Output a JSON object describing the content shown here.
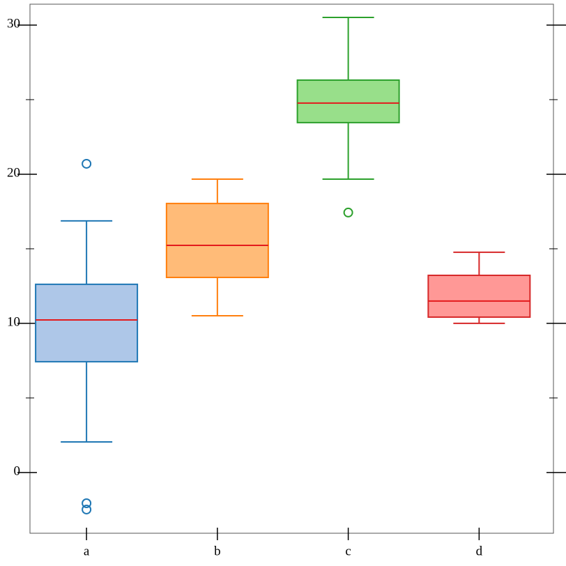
{
  "chart_data": {
    "type": "box",
    "categories": [
      "a",
      "b",
      "c",
      "d"
    ],
    "colors": [
      "#1f77b4",
      "#ff7f0e",
      "#2ca02c",
      "#d62728"
    ],
    "fills": [
      "#aec7e8",
      "#ffbb78",
      "#98df8a",
      "#ff9896"
    ],
    "median_color": "#e31a1c",
    "boxes": [
      {
        "whislo": 2.05,
        "q1": 7.43,
        "med": 10.23,
        "q3": 12.62,
        "whishi": 16.87,
        "fliers": [
          20.7,
          -2.06,
          -2.48
        ]
      },
      {
        "whislo": 10.51,
        "q1": 13.08,
        "med": 15.23,
        "q3": 18.04,
        "whishi": 19.67,
        "fliers": []
      },
      {
        "whislo": 19.67,
        "q1": 23.46,
        "med": 24.77,
        "q3": 26.31,
        "whishi": 30.51,
        "fliers": [
          17.43
        ]
      },
      {
        "whislo": 10.0,
        "q1": 10.42,
        "med": 11.5,
        "q3": 13.22,
        "whishi": 14.77,
        "fliers": []
      }
    ],
    "ylim": [
      -4.07,
      31.4
    ],
    "yticks": [
      0,
      10,
      20,
      30
    ],
    "yminor_ticks": [
      5,
      15,
      25
    ]
  }
}
